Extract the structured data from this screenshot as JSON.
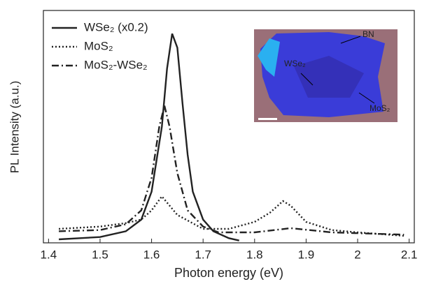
{
  "chart_data": {
    "type": "line",
    "xlabel": "Photon energy (eV)",
    "ylabel": "PL Intensity (a.u.)",
    "xlim": [
      1.39,
      2.11
    ],
    "ylim": [
      0,
      1
    ],
    "xticks": [
      1.4,
      1.5,
      1.6,
      1.7,
      1.8,
      1.9,
      2.0,
      2.1
    ],
    "legend": "upper left",
    "series": [
      {
        "name": "WSe₂ (x0.2)",
        "color": "#222222",
        "dash": "solid",
        "x": [
          1.42,
          1.5,
          1.55,
          1.58,
          1.6,
          1.62,
          1.63,
          1.64,
          1.65,
          1.66,
          1.67,
          1.68,
          1.7,
          1.72,
          1.75,
          1.77
        ],
        "values": [
          0.015,
          0.025,
          0.05,
          0.1,
          0.22,
          0.5,
          0.75,
          0.9,
          0.84,
          0.6,
          0.38,
          0.22,
          0.1,
          0.05,
          0.02,
          0.01
        ]
      },
      {
        "name": "MoS₂",
        "color": "#222222",
        "dash": "dotted",
        "x": [
          1.42,
          1.5,
          1.55,
          1.58,
          1.6,
          1.62,
          1.65,
          1.7,
          1.75,
          1.8,
          1.83,
          1.855,
          1.87,
          1.9,
          1.95,
          2.0,
          2.09
        ],
        "values": [
          0.06,
          0.07,
          0.085,
          0.1,
          0.14,
          0.2,
          0.12,
          0.06,
          0.06,
          0.09,
          0.13,
          0.18,
          0.16,
          0.09,
          0.055,
          0.045,
          0.03
        ]
      },
      {
        "name": "MoS₂-WSe₂",
        "color": "#222222",
        "dash": "dashdot",
        "x": [
          1.42,
          1.5,
          1.55,
          1.58,
          1.6,
          1.615,
          1.625,
          1.635,
          1.65,
          1.67,
          1.7,
          1.73,
          1.8,
          1.87,
          1.95,
          2.09
        ],
        "values": [
          0.05,
          0.055,
          0.08,
          0.14,
          0.28,
          0.5,
          0.59,
          0.5,
          0.3,
          0.14,
          0.07,
          0.045,
          0.045,
          0.063,
          0.045,
          0.035
        ]
      }
    ],
    "annotations": [
      "BN",
      "WSe₂",
      "MoS₂"
    ]
  }
}
